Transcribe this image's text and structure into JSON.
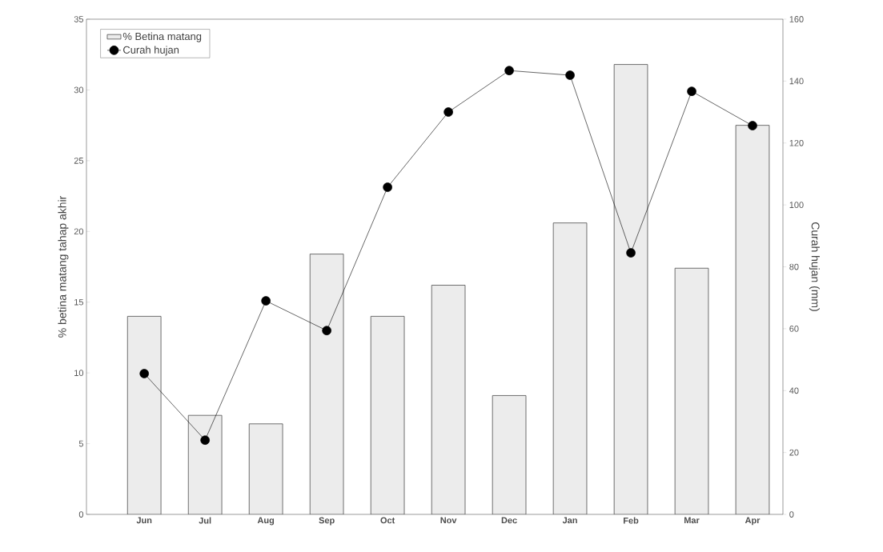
{
  "chart_data": {
    "type": "bar",
    "categories": [
      "Jun",
      "Jul",
      "Aug",
      "Sep",
      "Oct",
      "Nov",
      "Dec",
      "Jan",
      "Feb",
      "Mar",
      "Apr"
    ],
    "series": [
      {
        "name": "%  Betina matang",
        "color": "#ececec",
        "values": [
          14.0,
          7.0,
          6.4,
          18.4,
          14.0,
          16.2,
          8.4,
          20.6,
          31.8,
          17.4,
          27.5
        ]
      },
      {
        "name": "Curah hujan",
        "type": "line",
        "axis": "y2",
        "color": "#000000",
        "marker": "circle",
        "values": [
          45.5,
          24,
          69,
          59.4,
          105.7,
          130,
          143.4,
          141.9,
          84.5,
          136.7,
          125.6
        ]
      }
    ],
    "ylabel": "% betina matang tahap akhir",
    "y2label": "Curah hujan  (mm)",
    "ylim": [
      0,
      35
    ],
    "yticks": [
      0,
      5,
      10,
      15,
      20,
      25,
      30,
      35
    ],
    "y2lim": [
      0,
      160
    ],
    "y2ticks": [
      0,
      20,
      40,
      60,
      80,
      100,
      120,
      140,
      160
    ],
    "legend": "top left",
    "grid": false
  }
}
